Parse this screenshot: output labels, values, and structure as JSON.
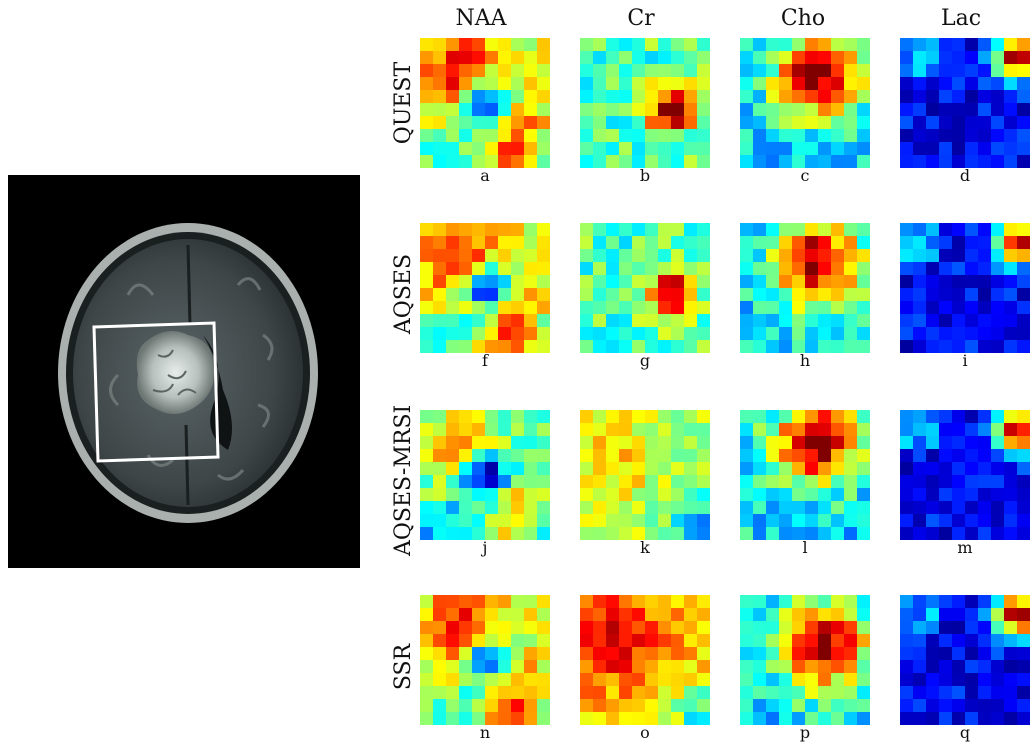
{
  "columns": [
    "NAA",
    "Cr",
    "Cho",
    "Lac"
  ],
  "rows": [
    "QUEST",
    "AQSES",
    "AQSES-MRSI",
    "SSR"
  ],
  "panel_labels": [
    [
      "a",
      "b",
      "c",
      "d"
    ],
    [
      "f",
      "g",
      "h",
      "i"
    ],
    [
      "j",
      "k",
      "l",
      "m"
    ],
    [
      "n",
      "o",
      "p",
      "q"
    ]
  ],
  "colormap": "jet",
  "colors": {
    "background": "#ffffff",
    "mri_background": "#000000",
    "roi_box": "#ffffff"
  }
}
